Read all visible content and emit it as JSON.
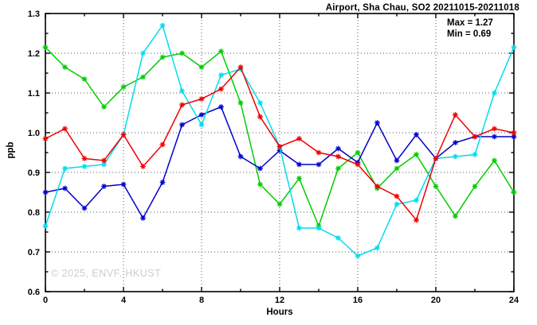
{
  "title": "Airport, Sha Chau, SO2 20211015-20211018",
  "annotation": {
    "max_label": "Max = 1.27",
    "min_label": "Min = 0.69"
  },
  "watermark": "© 2025, ENVF, HKUST",
  "chart_data": {
    "type": "line",
    "title": "Airport, Sha Chau, SO2 20211015-20211018",
    "xlabel": "Hours",
    "ylabel": "ppb",
    "xlim": [
      0,
      24
    ],
    "ylim": [
      0.6,
      1.3
    ],
    "grid": true,
    "legend": "none",
    "marker": "asterisk",
    "x_ticks": [
      "0",
      "4",
      "8",
      "12",
      "16",
      "20",
      "24"
    ],
    "x_minor_ticks": [
      2,
      6,
      10,
      14,
      18,
      22
    ],
    "x_gridlines": [
      4,
      8,
      12,
      16,
      20
    ],
    "y_ticks": [
      "0.6",
      "0.7",
      "0.8",
      "0.9",
      "1.0",
      "1.1",
      "1.2",
      "1.3"
    ],
    "y_minor_ticks": [
      0.65,
      0.75,
      0.85,
      0.95,
      1.05,
      1.15,
      1.25
    ],
    "y_gridlines": [
      0.7,
      0.8,
      0.9,
      1.0,
      1.1,
      1.2
    ],
    "x": [
      0,
      1,
      2,
      3,
      4,
      5,
      6,
      7,
      8,
      9,
      10,
      11,
      12,
      13,
      14,
      15,
      16,
      17,
      18,
      19,
      20,
      21,
      22,
      23,
      24
    ],
    "series": [
      {
        "name": "green-series",
        "color": "#00cc00",
        "values": [
          1.215,
          1.165,
          1.135,
          1.065,
          1.115,
          1.14,
          1.19,
          1.2,
          1.165,
          1.205,
          1.075,
          0.87,
          0.82,
          0.885,
          0.765,
          0.91,
          0.95,
          0.86,
          0.91,
          0.945,
          0.865,
          0.79,
          0.865,
          0.93,
          0.85
        ]
      },
      {
        "name": "blue-series",
        "color": "#0000cc",
        "values": [
          0.85,
          0.86,
          0.81,
          0.865,
          0.87,
          0.785,
          0.875,
          1.02,
          1.045,
          1.065,
          0.94,
          0.91,
          0.955,
          0.92,
          0.92,
          0.96,
          0.925,
          1.025,
          0.93,
          0.995,
          0.935,
          0.975,
          0.99,
          0.99,
          0.99
        ]
      },
      {
        "name": "cyan-series",
        "color": "#00dcee",
        "values": [
          0.765,
          0.91,
          0.915,
          0.92,
          0.995,
          1.2,
          1.27,
          1.105,
          1.02,
          1.145,
          1.16,
          1.075,
          0.965,
          0.76,
          0.76,
          0.735,
          0.69,
          0.71,
          0.82,
          0.83,
          0.935,
          0.94,
          0.945,
          1.1,
          1.215
        ]
      },
      {
        "name": "red-series",
        "color": "#ee0000",
        "values": [
          0.985,
          1.01,
          0.935,
          0.93,
          0.995,
          0.915,
          0.97,
          1.07,
          1.085,
          1.11,
          1.165,
          1.04,
          0.965,
          0.985,
          0.95,
          0.94,
          0.92,
          0.865,
          0.84,
          0.78,
          0.935,
          1.045,
          0.99,
          1.01,
          1.0
        ]
      }
    ],
    "annotations": [
      "Max = 1.27",
      "Min = 0.69"
    ]
  }
}
